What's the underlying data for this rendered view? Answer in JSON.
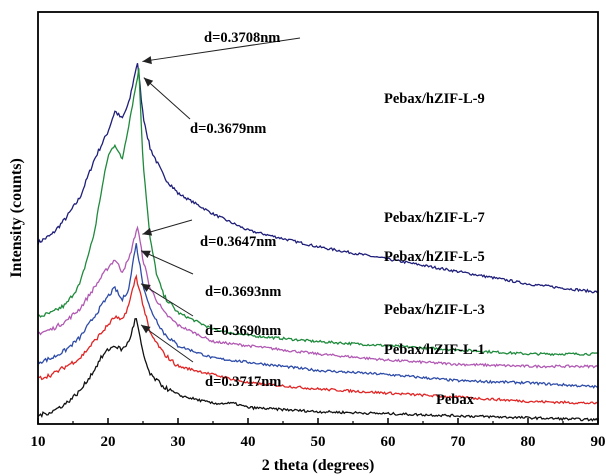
{
  "chart_data": {
    "type": "line",
    "title": "",
    "xlabel": "2 theta (degrees)",
    "ylabel": "Intensity (counts)",
    "xlim": [
      10,
      90
    ],
    "x_ticks": [
      10,
      20,
      30,
      40,
      50,
      60,
      70,
      80,
      90
    ],
    "y_ticks_shown": false,
    "grid": false,
    "legend": "none (series labelled directly on plot)",
    "series": [
      {
        "name": "Pebax/hZIF-L-9",
        "color": "#1f1f7a",
        "peak_two_theta": 24.2,
        "d_spacing_label": "d=0.3708nm",
        "points": [
          [
            10,
            0.44
          ],
          [
            12,
            0.46
          ],
          [
            14,
            0.5
          ],
          [
            16,
            0.55
          ],
          [
            18,
            0.64
          ],
          [
            20,
            0.71
          ],
          [
            21,
            0.76
          ],
          [
            22,
            0.74
          ],
          [
            23,
            0.78
          ],
          [
            24.2,
            0.88
          ],
          [
            25,
            0.75
          ],
          [
            26,
            0.67
          ],
          [
            28,
            0.6
          ],
          [
            30,
            0.56
          ],
          [
            35,
            0.51
          ],
          [
            40,
            0.47
          ],
          [
            50,
            0.43
          ],
          [
            60,
            0.4
          ],
          [
            70,
            0.37
          ],
          [
            80,
            0.34
          ],
          [
            90,
            0.32
          ]
        ]
      },
      {
        "name": "Pebax/hZIF-L-7",
        "color": "#1f8a3c",
        "peak_two_theta": 24.4,
        "d_spacing_label": "d=0.3679nm",
        "points": [
          [
            10,
            0.26
          ],
          [
            12,
            0.27
          ],
          [
            14,
            0.29
          ],
          [
            16,
            0.34
          ],
          [
            18,
            0.46
          ],
          [
            19,
            0.56
          ],
          [
            20,
            0.65
          ],
          [
            21,
            0.68
          ],
          [
            22,
            0.64
          ],
          [
            23,
            0.73
          ],
          [
            24.4,
            0.86
          ],
          [
            25,
            0.64
          ],
          [
            26,
            0.45
          ],
          [
            27,
            0.36
          ],
          [
            28,
            0.31
          ],
          [
            30,
            0.27
          ],
          [
            35,
            0.23
          ],
          [
            38,
            0.22
          ],
          [
            40,
            0.215
          ],
          [
            50,
            0.2
          ],
          [
            60,
            0.19
          ],
          [
            70,
            0.18
          ],
          [
            80,
            0.17
          ],
          [
            90,
            0.17
          ]
        ]
      },
      {
        "name": "Pebax/hZIF-L-5",
        "color": "#b15ab3",
        "peak_two_theta": 24.2,
        "d_spacing_label": "d=0.3647nm",
        "points": [
          [
            10,
            0.22
          ],
          [
            12,
            0.23
          ],
          [
            14,
            0.25
          ],
          [
            16,
            0.28
          ],
          [
            18,
            0.33
          ],
          [
            20,
            0.38
          ],
          [
            21,
            0.4
          ],
          [
            22,
            0.37
          ],
          [
            23,
            0.4
          ],
          [
            24.2,
            0.48
          ],
          [
            25,
            0.4
          ],
          [
            26,
            0.33
          ],
          [
            28,
            0.27
          ],
          [
            30,
            0.24
          ],
          [
            35,
            0.2
          ],
          [
            40,
            0.19
          ],
          [
            50,
            0.17
          ],
          [
            60,
            0.155
          ],
          [
            70,
            0.145
          ],
          [
            80,
            0.14
          ],
          [
            90,
            0.14
          ]
        ]
      },
      {
        "name": "Pebax/hZIF-L-3",
        "color": "#2e4ca8",
        "peak_two_theta": 24.0,
        "d_spacing_label": "d=0.3693nm",
        "points": [
          [
            10,
            0.15
          ],
          [
            12,
            0.16
          ],
          [
            14,
            0.18
          ],
          [
            16,
            0.21
          ],
          [
            18,
            0.26
          ],
          [
            20,
            0.31
          ],
          [
            21,
            0.33
          ],
          [
            22,
            0.3
          ],
          [
            23,
            0.33
          ],
          [
            24,
            0.44
          ],
          [
            25,
            0.34
          ],
          [
            26,
            0.28
          ],
          [
            28,
            0.22
          ],
          [
            30,
            0.19
          ],
          [
            35,
            0.16
          ],
          [
            40,
            0.15
          ],
          [
            50,
            0.13
          ],
          [
            60,
            0.12
          ],
          [
            70,
            0.105
          ],
          [
            80,
            0.1
          ],
          [
            90,
            0.09
          ]
        ]
      },
      {
        "name": "Pebax/hZIF-L-1",
        "color": "#e02525",
        "peak_two_theta": 24.0,
        "d_spacing_label": "d=0.3690nm",
        "points": [
          [
            10,
            0.11
          ],
          [
            12,
            0.12
          ],
          [
            14,
            0.14
          ],
          [
            16,
            0.16
          ],
          [
            18,
            0.2
          ],
          [
            20,
            0.24
          ],
          [
            21,
            0.26
          ],
          [
            22,
            0.25
          ],
          [
            23,
            0.29
          ],
          [
            24,
            0.36
          ],
          [
            25,
            0.29
          ],
          [
            26,
            0.22
          ],
          [
            28,
            0.17
          ],
          [
            30,
            0.14
          ],
          [
            35,
            0.12
          ],
          [
            40,
            0.1
          ],
          [
            50,
            0.085
          ],
          [
            60,
            0.075
          ],
          [
            70,
            0.065
          ],
          [
            80,
            0.055
          ],
          [
            90,
            0.05
          ]
        ]
      },
      {
        "name": "Pebax",
        "color": "#111111",
        "peak_two_theta": 24.0,
        "d_spacing_label": "d=0.3717nm",
        "points": [
          [
            10,
            0.02
          ],
          [
            12,
            0.03
          ],
          [
            14,
            0.05
          ],
          [
            16,
            0.08
          ],
          [
            18,
            0.13
          ],
          [
            19,
            0.16
          ],
          [
            20,
            0.18
          ],
          [
            21,
            0.19
          ],
          [
            22,
            0.18
          ],
          [
            23,
            0.2
          ],
          [
            24,
            0.26
          ],
          [
            25,
            0.17
          ],
          [
            26,
            0.12
          ],
          [
            28,
            0.09
          ],
          [
            30,
            0.07
          ],
          [
            35,
            0.05
          ],
          [
            38,
            0.05
          ],
          [
            40,
            0.04
          ],
          [
            50,
            0.03
          ],
          [
            60,
            0.025
          ],
          [
            70,
            0.02
          ],
          [
            80,
            0.015
          ],
          [
            90,
            0.01
          ]
        ]
      }
    ]
  }
}
